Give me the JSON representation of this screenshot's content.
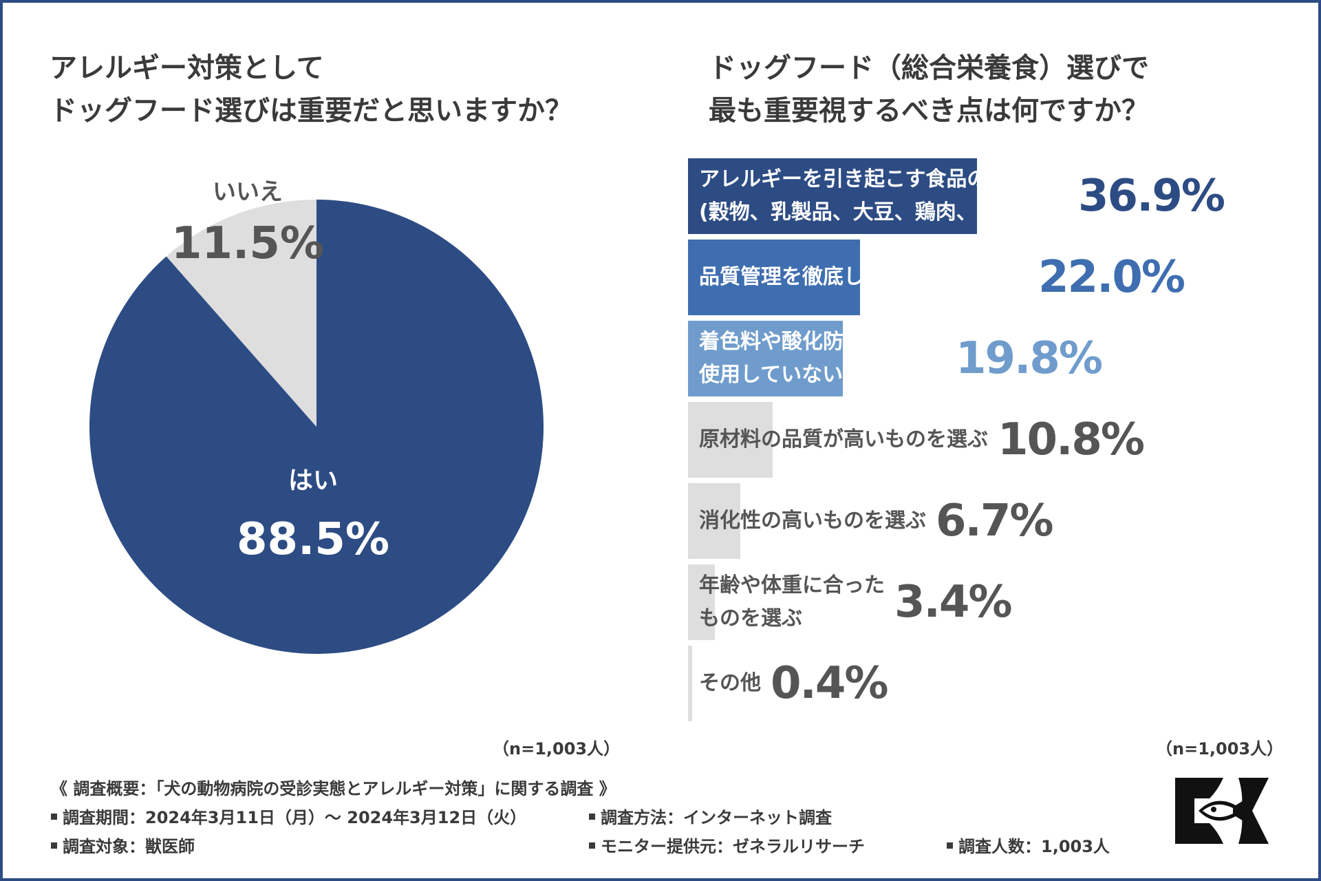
{
  "left_title": {
    "line1": "アレルギー対策として",
    "line2": "ドッグフード選びは重要だと思いますか？"
  },
  "right_title": {
    "line1": "ドッグフード（総合栄養食）選びで",
    "line2": "最も重要視するべき点は何ですか？"
  },
  "colors": {
    "frame": "#2d4c84",
    "dark_blue": "#2d4c84",
    "mid_blue": "#3f6eb0",
    "light_blue": "#6f9ccc",
    "gray": "#dedede",
    "gray_text": "#555555"
  },
  "chart_data": [
    {
      "type": "pie",
      "title": "アレルギー対策として ドッグフード選びは重要だと思いますか？",
      "slices": [
        {
          "label": "はい",
          "value": 88.5,
          "display": "88.5%",
          "color": "#2d4c84"
        },
        {
          "label": "いいえ",
          "value": 11.5,
          "display": "11.5%",
          "color": "#dedede"
        }
      ],
      "n_label": "（n=1,003人）"
    },
    {
      "type": "bar",
      "orientation": "horizontal",
      "title": "ドッグフード（総合栄養食）選びで 最も重要視するべき点は何ですか？",
      "xlim": [
        0,
        36.9
      ],
      "categories": [
        {
          "lines": [
            "アレルギーを引き起こす食品の除外",
            "(穀物、乳製品、大豆、鶏肉、牛肉など)"
          ],
          "value": 36.9,
          "display": "36.9%",
          "bar_color": "#2d4c84",
          "value_color": "#2d4c84",
          "label_style": "dark"
        },
        {
          "lines": [
            "品質管理を徹底しているものを選ぶ"
          ],
          "value": 22.0,
          "display": "22.0%",
          "bar_color": "#3f6eb0",
          "value_color": "#3f6eb0",
          "label_style": "dark"
        },
        {
          "lines": [
            "着色料や酸化防止剤を",
            "使用していないものを選ぶ"
          ],
          "value": 19.8,
          "display": "19.8%",
          "bar_color": "#6f9ccc",
          "value_color": "#6f9ccc",
          "label_style": "dark"
        },
        {
          "lines": [
            "原材料の品質が高いものを選ぶ"
          ],
          "value": 10.8,
          "display": "10.8%",
          "bar_color": "#dedede",
          "value_color": "#555555",
          "label_style": "light"
        },
        {
          "lines": [
            "消化性の高いものを選ぶ"
          ],
          "value": 6.7,
          "display": "6.7%",
          "bar_color": "#dedede",
          "value_color": "#555555",
          "label_style": "light"
        },
        {
          "lines": [
            "年齢や体重に合った",
            "ものを選ぶ"
          ],
          "value": 3.4,
          "display": "3.4%",
          "bar_color": "#dedede",
          "value_color": "#555555",
          "label_style": "light"
        },
        {
          "lines": [
            "その他"
          ],
          "value": 0.4,
          "display": "0.4%",
          "bar_color": "#dedede",
          "value_color": "#555555",
          "label_style": "light"
        }
      ],
      "n_label": "（n=1,003人）"
    }
  ],
  "survey": {
    "heading": "《 調査概要：「犬の動物病院の受診実態とアレルギー対策」に関する調査 》",
    "period": "調査期間：2024年3月11日（月）～ 2024年3月12日（火）",
    "method": "調査方法：インターネット調査",
    "target": "調査対象：獣医師",
    "monitor": "モニター提供元：ゼネラルリサーチ",
    "count": "調査人数：1,003人"
  },
  "logo": {
    "icon": "fish-k-logo-icon"
  }
}
